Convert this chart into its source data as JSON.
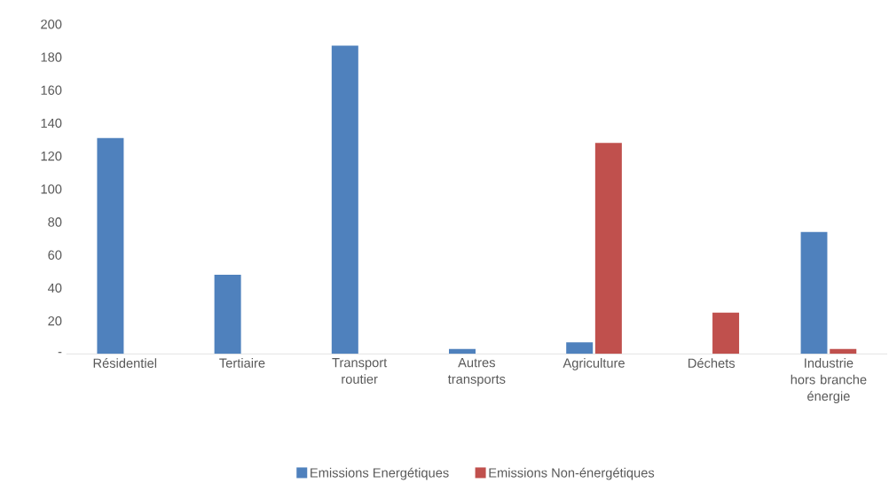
{
  "chart_data": {
    "type": "bar",
    "categories": [
      "Résidentiel",
      "Tertiaire",
      "Transport routier",
      "Autres transports",
      "Agriculture",
      "Déchets",
      "Industrie hors branche énergie"
    ],
    "series": [
      {
        "name": "Emissions Energétiques",
        "color": "#4f81bd",
        "values": [
          131,
          48,
          187,
          3,
          7,
          0,
          74
        ]
      },
      {
        "name": "Emissions Non-énergétiques",
        "color": "#c0504d",
        "values": [
          0,
          0,
          0,
          0,
          128,
          25,
          3
        ]
      }
    ],
    "ylim": [
      0,
      200
    ],
    "yticks": [
      {
        "value": 0,
        "label": "-"
      },
      20,
      40,
      60,
      80,
      100,
      120,
      140,
      160,
      180,
      200
    ],
    "legend": "bottom",
    "grid": false
  }
}
